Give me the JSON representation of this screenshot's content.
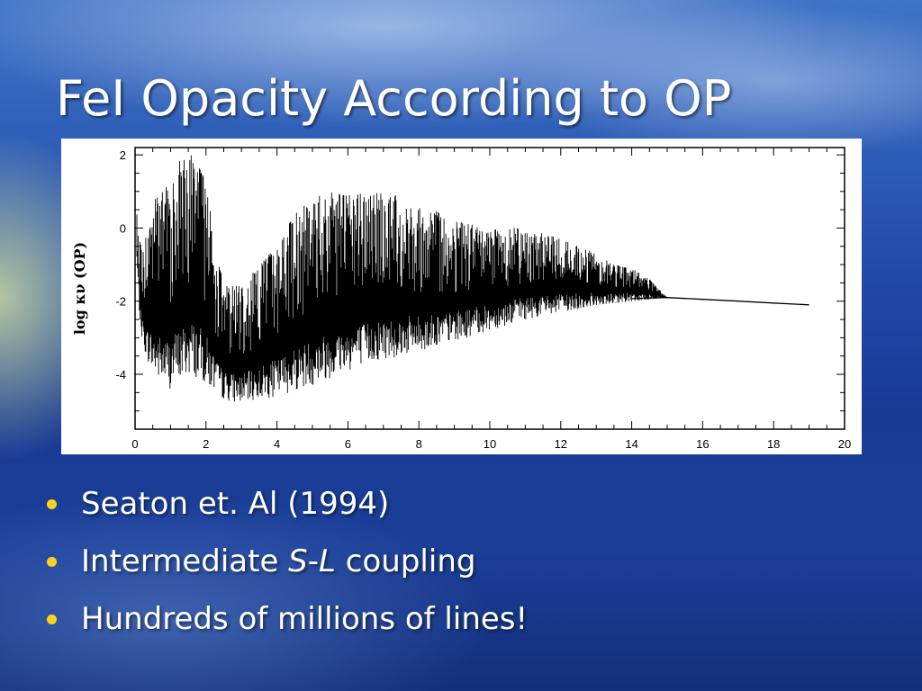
{
  "slide": {
    "title": "FeI Opacity According to OP",
    "bullets": [
      {
        "text": "Seaton et. Al (1994)"
      },
      {
        "pre": "Intermediate ",
        "s": "S",
        "dash": "-",
        "l": "L",
        "post": " coupling"
      },
      {
        "text": "Hundreds of millions of lines!"
      }
    ],
    "bullet_color": "#ffd21e"
  },
  "chart_data": {
    "type": "line",
    "title": "",
    "xlabel": "",
    "ylabel": "log κν (OP)",
    "xlim": [
      0,
      20
    ],
    "ylim": [
      -5.5,
      2.2
    ],
    "xticks": [
      0,
      2,
      4,
      6,
      8,
      10,
      12,
      14,
      16,
      18,
      20
    ],
    "yticks": [
      2,
      0,
      -2,
      -4
    ],
    "grid": false,
    "legend": "none",
    "series": [
      {
        "envelope_upper": [
          [
            0.05,
            0.5
          ],
          [
            0.2,
            -0.8
          ],
          [
            0.5,
            0.8
          ],
          [
            0.8,
            1.0
          ],
          [
            1.0,
            1.4
          ],
          [
            1.2,
            1.8
          ],
          [
            1.5,
            2.1
          ],
          [
            1.8,
            1.8
          ],
          [
            2.05,
            1.0
          ],
          [
            2.3,
            -0.8
          ],
          [
            2.5,
            -1.5
          ],
          [
            3.0,
            -1.6
          ],
          [
            3.5,
            -1.0
          ],
          [
            4.0,
            -0.5
          ],
          [
            4.5,
            0.4
          ],
          [
            5.0,
            0.8
          ],
          [
            5.5,
            1.0
          ],
          [
            6.0,
            0.9
          ],
          [
            7.0,
            1.0
          ],
          [
            8.0,
            0.7
          ],
          [
            9.0,
            0.2
          ],
          [
            10.0,
            0.0
          ],
          [
            11.0,
            0.0
          ],
          [
            12.0,
            -0.3
          ],
          [
            13.0,
            -0.7
          ],
          [
            13.5,
            -1.0
          ],
          [
            14.0,
            -1.1
          ],
          [
            14.5,
            -1.4
          ],
          [
            15.0,
            -1.9
          ]
        ],
        "envelope_lower": [
          [
            0.05,
            -1.0
          ],
          [
            0.15,
            -2.8
          ],
          [
            0.3,
            -3.5
          ],
          [
            0.5,
            -4.0
          ],
          [
            0.8,
            -4.3
          ],
          [
            1.0,
            -4.4
          ],
          [
            1.3,
            -4.2
          ],
          [
            1.6,
            -4.0
          ],
          [
            2.0,
            -4.3
          ],
          [
            2.5,
            -4.7
          ],
          [
            3.0,
            -4.8
          ],
          [
            3.5,
            -4.7
          ],
          [
            4.0,
            -4.6
          ],
          [
            5.0,
            -4.3
          ],
          [
            6.0,
            -3.9
          ],
          [
            7.0,
            -3.6
          ],
          [
            8.0,
            -3.4
          ],
          [
            9.0,
            -3.1
          ],
          [
            10.0,
            -2.8
          ],
          [
            11.0,
            -2.5
          ],
          [
            12.0,
            -2.3
          ],
          [
            13.0,
            -2.1
          ],
          [
            14.0,
            -2.0
          ],
          [
            15.0,
            -1.9
          ]
        ],
        "continuum": [
          [
            14.0,
            -1.93
          ],
          [
            15.0,
            -1.9
          ],
          [
            16.0,
            -1.95
          ],
          [
            17.0,
            -2.0
          ],
          [
            18.0,
            -2.05
          ],
          [
            19.0,
            -2.1
          ]
        ]
      }
    ]
  }
}
